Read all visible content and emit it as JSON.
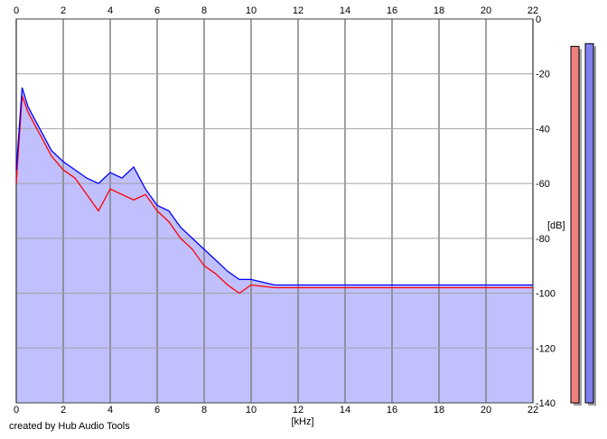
{
  "credit_text": "created by Hub Audio Tools",
  "chart_data": {
    "type": "line",
    "xlabel": "[kHz]",
    "ylabel": "[dB]",
    "xlim": [
      0,
      22
    ],
    "ylim": [
      -140,
      0
    ],
    "x_ticks": [
      0,
      2,
      4,
      6,
      8,
      10,
      12,
      14,
      16,
      18,
      20,
      22
    ],
    "y_ticks": [
      0,
      -20,
      -40,
      -60,
      -80,
      -100,
      -120,
      -140
    ],
    "grid": true,
    "fill_color": "#c0c0ff",
    "x": [
      0,
      0.25,
      0.5,
      0.75,
      1,
      1.5,
      2,
      2.5,
      3,
      3.5,
      4,
      4.5,
      5,
      5.5,
      6,
      6.5,
      7,
      7.5,
      8,
      8.5,
      9,
      9.5,
      10,
      11,
      12,
      13,
      14,
      15,
      16,
      17,
      18,
      19,
      20,
      21,
      22
    ],
    "series": [
      {
        "color": "#ff0000",
        "values": [
          -60,
          -28,
          -34,
          -38,
          -42,
          -50,
          -55,
          -58,
          -64,
          -70,
          -62,
          -64,
          -66,
          -64,
          -70,
          -74,
          -80,
          -84,
          -90,
          -93,
          -97,
          -100,
          -97,
          -98,
          -98,
          -98,
          -98,
          -98,
          -98,
          -98,
          -98,
          -98,
          -98,
          -98,
          -98
        ]
      },
      {
        "color": "#0000ff",
        "values": [
          -55,
          -25,
          -32,
          -36,
          -40,
          -48,
          -52,
          -55,
          -58,
          -60,
          -56,
          -58,
          -54,
          -62,
          -68,
          -70,
          -76,
          -80,
          -84,
          -88,
          -92,
          -95,
          -95,
          -97,
          -97,
          -97,
          -97,
          -97,
          -97,
          -97,
          -97,
          -97,
          -97,
          -97,
          -97
        ]
      }
    ]
  },
  "level_meters": [
    {
      "color": "#f08080",
      "value": -10
    },
    {
      "color": "#8080f0",
      "value": -9
    }
  ]
}
